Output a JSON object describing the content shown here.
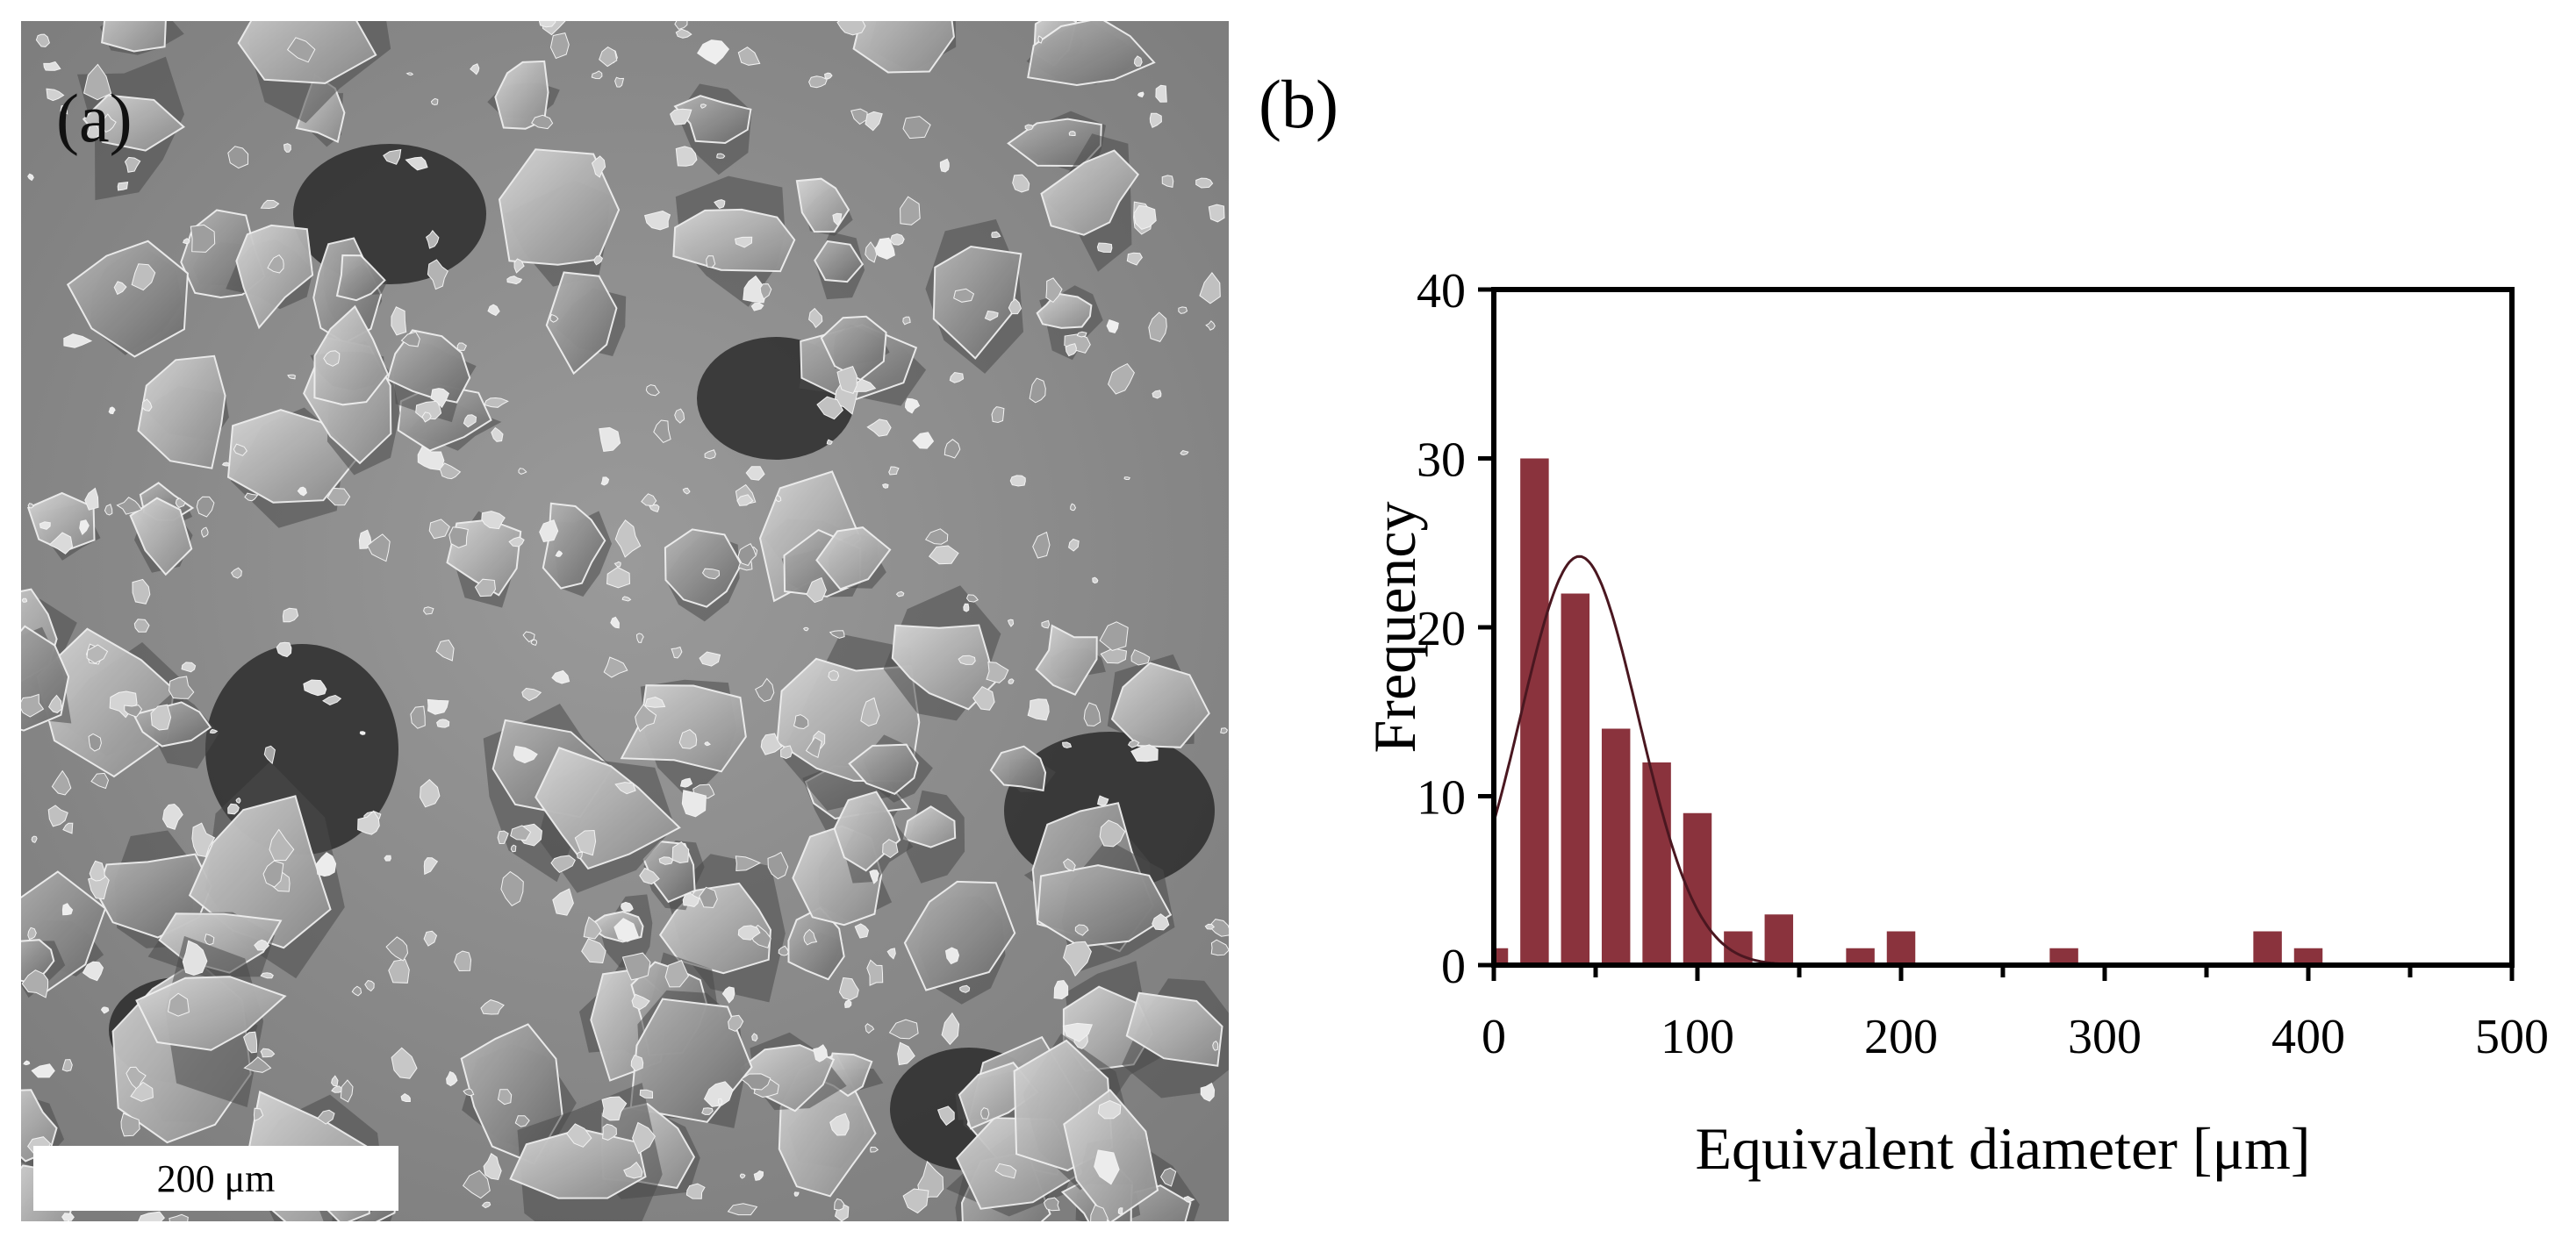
{
  "panels": {
    "a": {
      "label": "(a)",
      "scale_bar": "200 μm",
      "image": "SEM micrograph of irregular flaky particles"
    },
    "b": {
      "label": "(b)"
    }
  },
  "colors": {
    "bar": "#8a333d",
    "curve": "#4a1720",
    "axis": "#000000",
    "sem_background": "#8c8c8c"
  },
  "chart_data": {
    "type": "bar",
    "title": "",
    "xlabel": "Equivalent diameter [μm]",
    "ylabel": "Frequency",
    "xlim": [
      0,
      500
    ],
    "ylim": [
      0,
      40
    ],
    "bin_width": 20,
    "x_ticks": [
      0,
      100,
      200,
      300,
      400,
      500
    ],
    "y_ticks": [
      0,
      10,
      20,
      30,
      40
    ],
    "x": [
      0,
      20,
      40,
      60,
      80,
      100,
      120,
      140,
      160,
      180,
      200,
      220,
      240,
      260,
      280,
      300,
      320,
      340,
      360,
      380,
      400
    ],
    "values": [
      1,
      30,
      22,
      14,
      12,
      9,
      2,
      3,
      0,
      1,
      2,
      0,
      0,
      0,
      1,
      0,
      0,
      0,
      0,
      2,
      1
    ],
    "fit_curve": {
      "type": "normal",
      "mean": 42,
      "sd": 29,
      "peak": 24.2
    },
    "grid": false,
    "legend": "none"
  }
}
